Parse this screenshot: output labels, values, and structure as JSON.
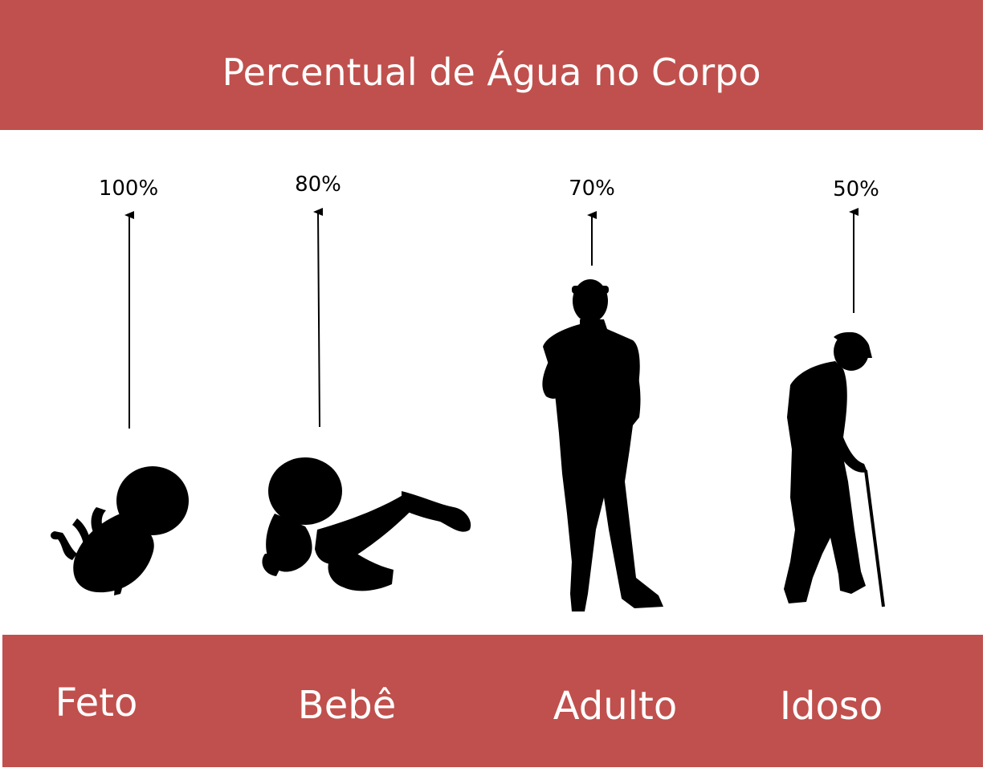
{
  "title": "Percentual de Água no Corpo",
  "colors": {
    "band": "#c0504d",
    "text_on_band": "#ffffff",
    "ink": "#000000"
  },
  "stages": [
    {
      "label": "Feto",
      "percent": "100%",
      "value": 100,
      "icon": "fetus-silhouette-icon"
    },
    {
      "label": "Bebê",
      "percent": "80%",
      "value": 80,
      "icon": "baby-silhouette-icon"
    },
    {
      "label": "Adulto",
      "percent": "70%",
      "value": 70,
      "icon": "adult-silhouette-icon"
    },
    {
      "label": "Idoso",
      "percent": "50%",
      "value": 50,
      "icon": "elderly-silhouette-icon"
    }
  ]
}
